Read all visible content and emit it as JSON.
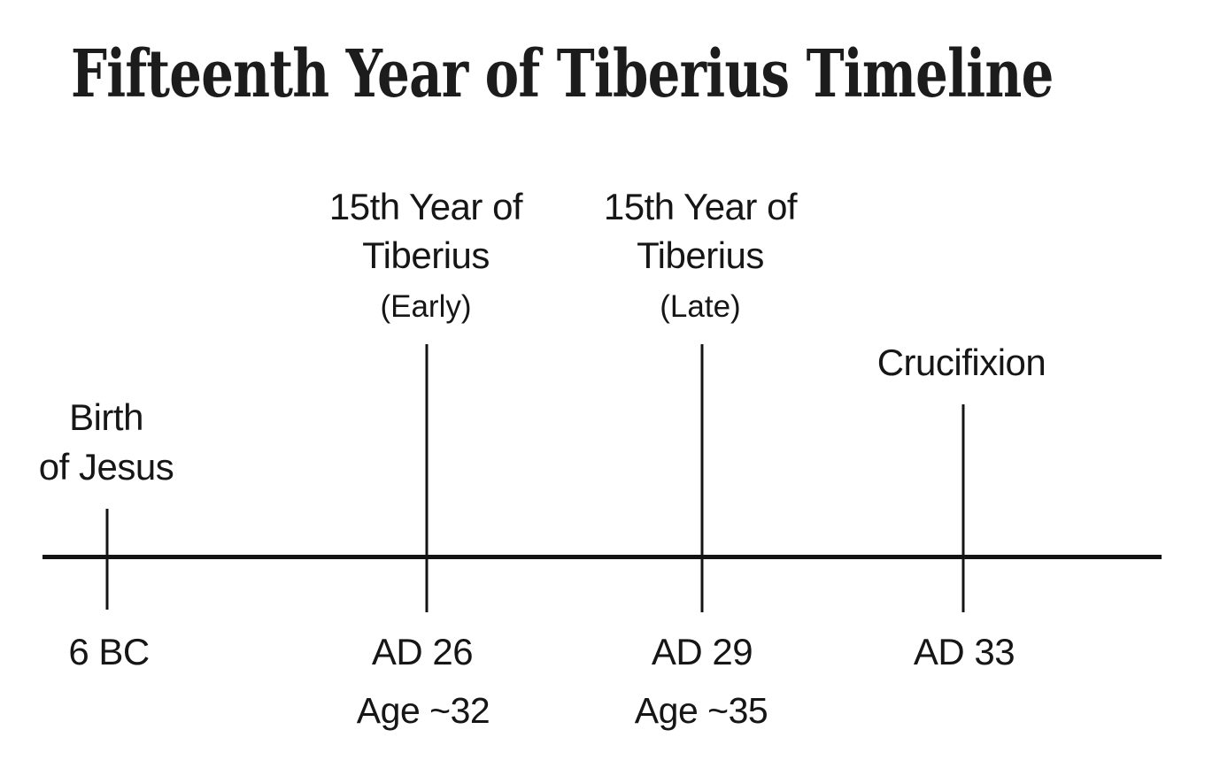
{
  "title": "Fifteenth Year of Tiberius Timeline",
  "timeline": {
    "axis": {
      "description": "horizontal timeline axis"
    },
    "events": [
      {
        "name_lines": [
          "Birth",
          "of Jesus"
        ],
        "qualifier": "",
        "date": "6 BC",
        "age": ""
      },
      {
        "name_lines": [
          "15th Year of",
          "Tiberius"
        ],
        "qualifier": "(Early)",
        "date": "AD 26",
        "age": "Age ~32"
      },
      {
        "name_lines": [
          "15th Year of",
          "Tiberius"
        ],
        "qualifier": "(Late)",
        "date": "AD 29",
        "age": "Age ~35"
      },
      {
        "name_lines": [
          "Crucifixion"
        ],
        "qualifier": "",
        "date": "AD 33",
        "age": ""
      }
    ],
    "colors": {
      "line": "#141414",
      "text": "#161616",
      "background": "#ffffff"
    }
  }
}
